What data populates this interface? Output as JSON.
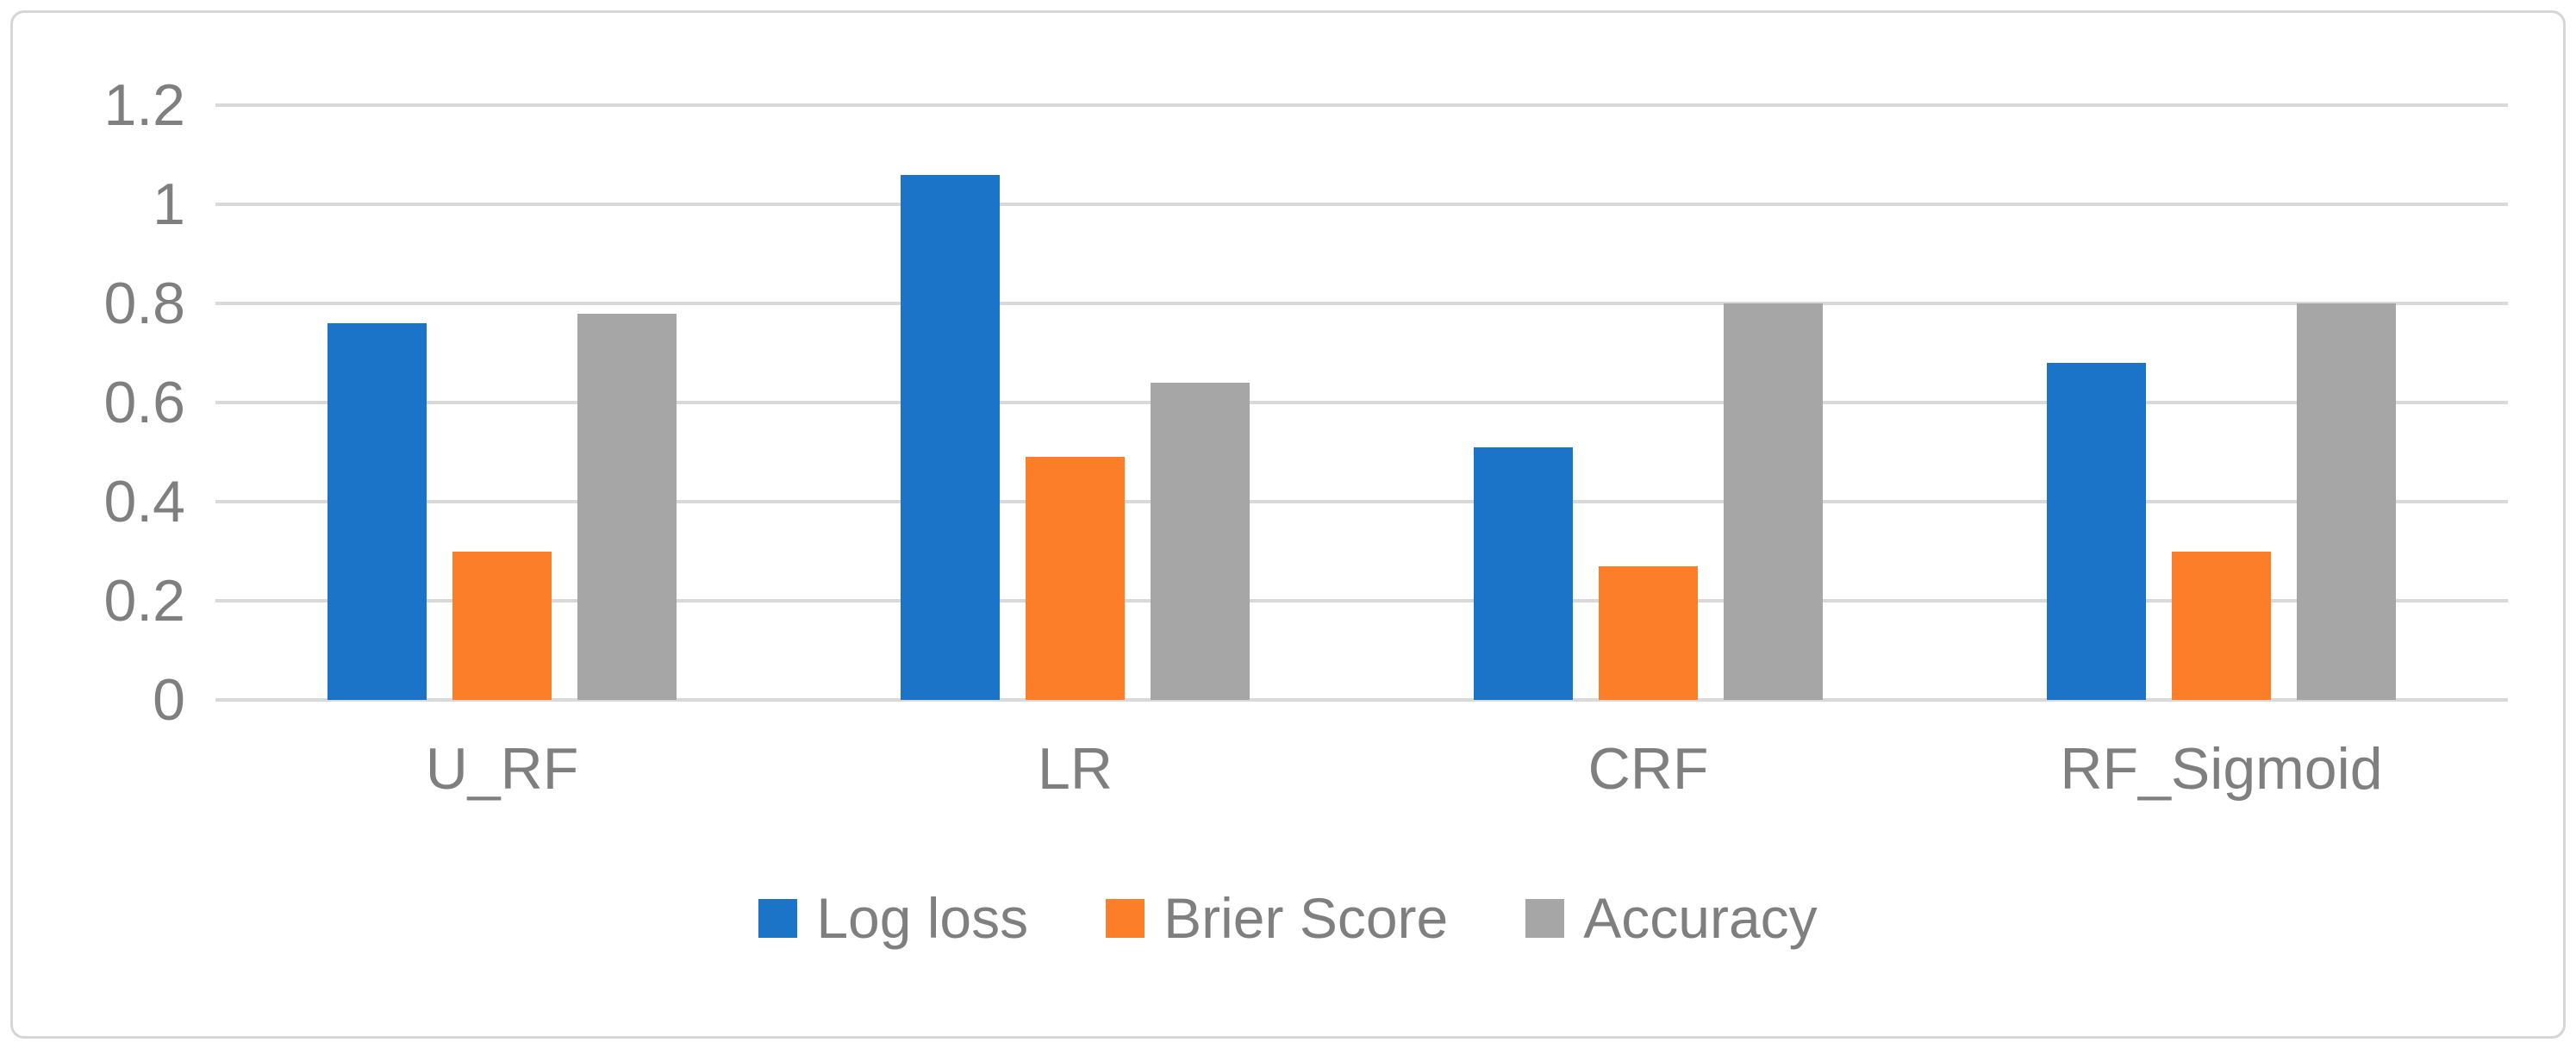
{
  "chart_data": {
    "type": "bar",
    "title": "",
    "categories": [
      "U_RF",
      "LR",
      "CRF",
      "RF_Sigmoid"
    ],
    "series": [
      {
        "name": "Log loss",
        "color": "#1b74c7",
        "values": [
          0.76,
          1.06,
          0.51,
          0.68
        ]
      },
      {
        "name": "Brier Score",
        "color": "#fd7e28",
        "values": [
          0.3,
          0.49,
          0.27,
          0.3
        ]
      },
      {
        "name": "Accuracy",
        "color": "#a6a6a6",
        "values": [
          0.78,
          0.64,
          0.8,
          0.8
        ]
      }
    ],
    "ylim": [
      0,
      1.2
    ],
    "yticks": [
      0,
      0.2,
      0.4,
      0.6,
      0.8,
      1,
      1.2
    ],
    "ytick_labels": [
      "0",
      "0.2",
      "0.4",
      "0.6",
      "0.8",
      "1",
      "1.2"
    ],
    "xlabel": "",
    "ylabel": "",
    "grid": true,
    "legend_position": "bottom"
  },
  "colors": {
    "background": "#ffffff",
    "frame_border": "#d6d6d6",
    "gridline": "#d9d9d9",
    "axis_text": "#7f7f7f"
  }
}
